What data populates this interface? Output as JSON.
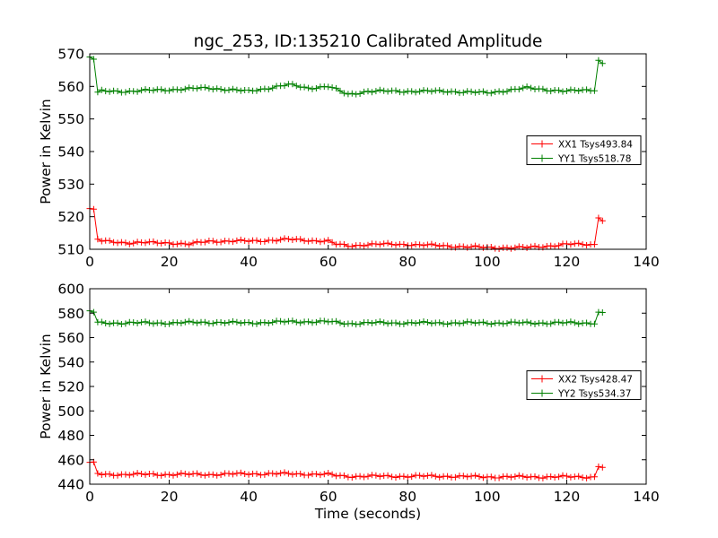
{
  "title": "ngc_253, ID:135210 Calibrated Amplitude",
  "chart_data": [
    {
      "type": "line",
      "ylabel": "Power in Kelvin",
      "xlabel": "",
      "xlim": [
        0,
        140
      ],
      "ylim": [
        510,
        570
      ],
      "xticks": [
        "0",
        "20",
        "40",
        "60",
        "80",
        "100",
        "120",
        "140"
      ],
      "yticks": [
        "510",
        "520",
        "530",
        "540",
        "550",
        "560",
        "570"
      ],
      "legend_position": "right",
      "marker": "+",
      "series": [
        {
          "name": "XX1 Tsys493.84",
          "color": "#ff0000",
          "x": [
            0,
            1,
            2,
            3,
            10,
            20,
            25,
            30,
            40,
            50,
            60,
            62,
            65,
            70,
            80,
            90,
            100,
            110,
            120,
            127,
            128,
            129
          ],
          "y": [
            522.5,
            522,
            513,
            512.5,
            512,
            512,
            511.5,
            512.5,
            512.5,
            513,
            512.5,
            511.5,
            511,
            511.5,
            511.5,
            511,
            510.5,
            510.5,
            511.5,
            511.5,
            520,
            519
          ]
        },
        {
          "name": "YY1 Tsys518.78",
          "color": "#008000",
          "x": [
            0,
            1,
            2,
            3,
            10,
            20,
            30,
            40,
            50,
            55,
            60,
            65,
            70,
            80,
            90,
            100,
            110,
            120,
            127,
            128,
            129
          ],
          "y": [
            569,
            568.5,
            558,
            558.5,
            558.5,
            559,
            559.5,
            558.5,
            560.5,
            559.5,
            560,
            557.5,
            558.5,
            558.5,
            558.5,
            558,
            559.5,
            558.5,
            559,
            568,
            567
          ]
        }
      ]
    },
    {
      "type": "line",
      "ylabel": "Power in Kelvin",
      "xlabel": "Time (seconds)",
      "xlim": [
        0,
        140
      ],
      "ylim": [
        440,
        600
      ],
      "xticks": [
        "0",
        "20",
        "40",
        "60",
        "80",
        "100",
        "120",
        "140"
      ],
      "yticks": [
        "440",
        "460",
        "480",
        "500",
        "520",
        "540",
        "560",
        "580",
        "600"
      ],
      "legend_position": "right",
      "marker": "+",
      "series": [
        {
          "name": "XX2 Tsys428.47",
          "color": "#ff0000",
          "x": [
            0,
            1,
            2,
            3,
            10,
            20,
            30,
            40,
            50,
            60,
            62,
            65,
            70,
            80,
            90,
            100,
            110,
            120,
            127,
            128,
            129
          ],
          "y": [
            457.5,
            457,
            448.5,
            448,
            448,
            448,
            448,
            448.5,
            448.5,
            448,
            447,
            446.5,
            446.5,
            446.5,
            446.5,
            446,
            446,
            446,
            446,
            455,
            454
          ]
        },
        {
          "name": "YY2 Tsys534.37",
          "color": "#008000",
          "x": [
            0,
            1,
            2,
            3,
            10,
            20,
            30,
            40,
            50,
            60,
            65,
            70,
            80,
            90,
            100,
            110,
            120,
            127,
            128,
            129
          ],
          "y": [
            581.5,
            581,
            572,
            572,
            572,
            572,
            572.5,
            572,
            573,
            573,
            571.5,
            572,
            572,
            572,
            572,
            572,
            572,
            572,
            580.5,
            580
          ]
        }
      ]
    }
  ]
}
